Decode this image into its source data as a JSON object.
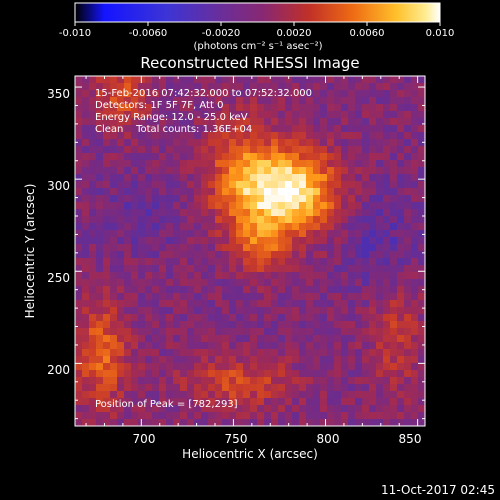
{
  "colorbar": {
    "ticks": [
      "-0.010",
      "-0.0060",
      "-0.0020",
      "0.0020",
      "0.0060",
      "0.010"
    ],
    "unit_label": "(photons cm⁻² s⁻¹ asec⁻²)",
    "range": [
      -0.01,
      0.01
    ],
    "colormap": [
      "#000000",
      "#1a1aff",
      "#3a2fd0",
      "#5a2fa0",
      "#7a2a80",
      "#a02a55",
      "#c83a2a",
      "#e8631a",
      "#ff9a1a",
      "#ffd050",
      "#ffffff"
    ]
  },
  "annotations": {
    "time": "15-Feb-2016 07:42:32.000 to 07:52:32.000",
    "detectors": "Detectors: 1F 5F 7F, Att 0",
    "energy": "Energy Range: 12.0 - 25.0 keV",
    "clean": "Clean    Total counts: 1.36E+04",
    "peak": "Position of Peak = [782,293]"
  },
  "footer": {
    "timestamp": "11-Oct-2017 02:45"
  },
  "chart_data": {
    "type": "heatmap",
    "title": "Reconstructed RHESSI Image",
    "xlabel": "Heliocentric X (arcsec)",
    "ylabel": "Heliocentric Y (arcsec)",
    "xlim": [
      664,
      854
    ],
    "ylim": [
      166,
      356
    ],
    "xticks": [
      "700",
      "750",
      "800",
      "850"
    ],
    "yticks": [
      "200",
      "250",
      "300",
      "350"
    ],
    "xtick_values": [
      700,
      750,
      800,
      850
    ],
    "ytick_values": [
      200,
      250,
      300,
      350
    ],
    "peak": {
      "x": 782,
      "y": 293
    },
    "grid": false
  }
}
